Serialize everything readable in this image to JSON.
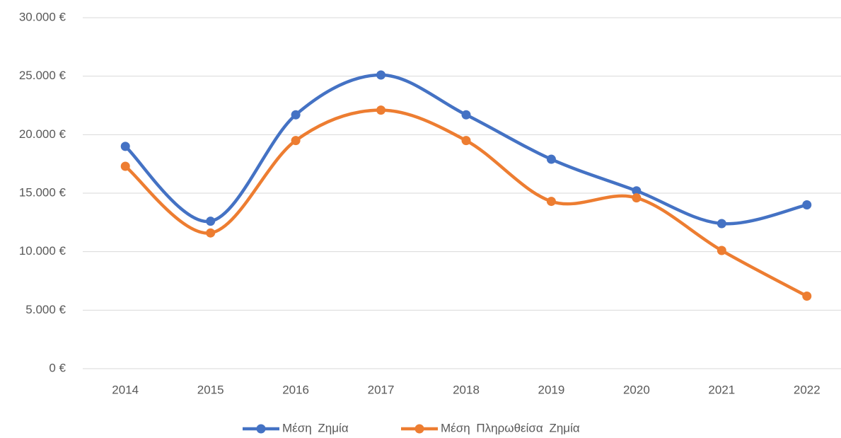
{
  "chart_data": {
    "type": "line",
    "categories": [
      "2014",
      "2015",
      "2016",
      "2017",
      "2018",
      "2019",
      "2020",
      "2021",
      "2022"
    ],
    "series": [
      {
        "name": "Μέση Ζημία",
        "color": "#4472c4",
        "values": [
          19000,
          12600,
          21700,
          25100,
          21700,
          17900,
          15200,
          12400,
          14000
        ]
      },
      {
        "name": "Μέση Πληρωθείσα Ζημία",
        "color": "#ed7d31",
        "values": [
          17300,
          11600,
          19500,
          22100,
          19500,
          14300,
          14600,
          10100,
          6200
        ]
      }
    ],
    "ylim": [
      0,
      30000
    ],
    "yticks": [
      {
        "value": 0,
        "label": "0 €"
      },
      {
        "value": 5000,
        "label": "5.000 €"
      },
      {
        "value": 10000,
        "label": "10.000 €"
      },
      {
        "value": 15000,
        "label": "15.000 €"
      },
      {
        "value": 20000,
        "label": "20.000 €"
      },
      {
        "value": 25000,
        "label": "25.000 €"
      },
      {
        "value": 30000,
        "label": "30.000 €"
      }
    ],
    "grid": true,
    "smooth": true,
    "legend": "bottom"
  }
}
